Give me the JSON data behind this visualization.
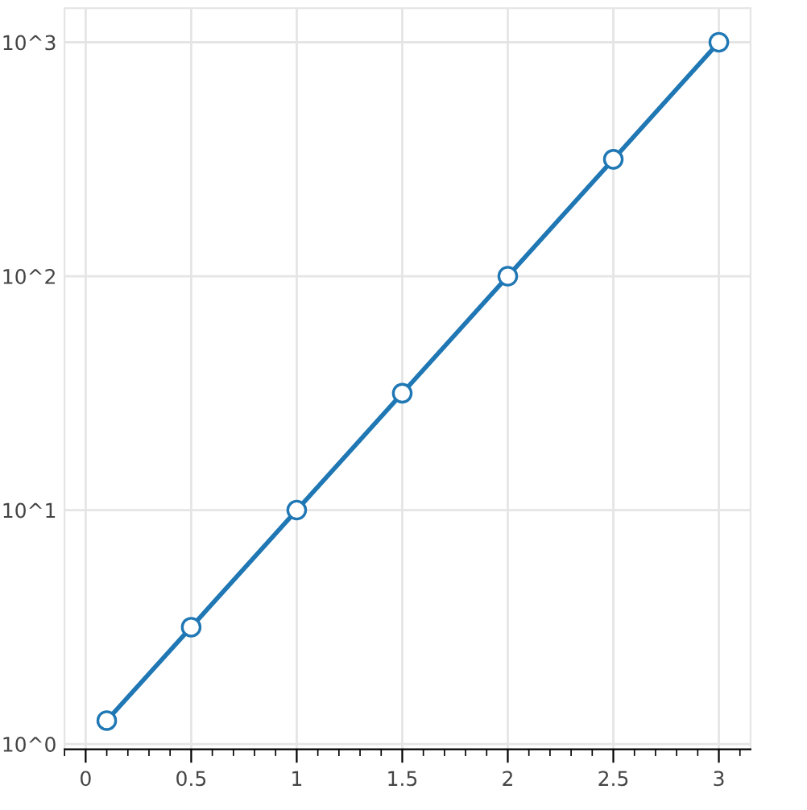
{
  "chart_data": {
    "type": "line",
    "x": [
      0.1,
      0.5,
      1,
      1.5,
      2,
      2.5,
      3
    ],
    "series": [
      {
        "color": "#1f77b4",
        "values": [
          1.26,
          3.16,
          10,
          31.6,
          100,
          316,
          1000
        ]
      }
    ],
    "log": "y",
    "xlim": [
      -0.1,
      3.15
    ],
    "ylim": [
      0.95,
      1400
    ],
    "xticks": [
      0,
      0.5,
      1,
      1.5,
      2,
      2.5,
      3
    ],
    "yticks": [
      {
        "value": 1,
        "label": "10^0"
      },
      {
        "value": 10,
        "label": "10^1"
      },
      {
        "value": 100,
        "label": "10^2"
      },
      {
        "value": 1000,
        "label": "10^3"
      }
    ],
    "grid": true,
    "marker": "circle",
    "line_style": "solid"
  }
}
